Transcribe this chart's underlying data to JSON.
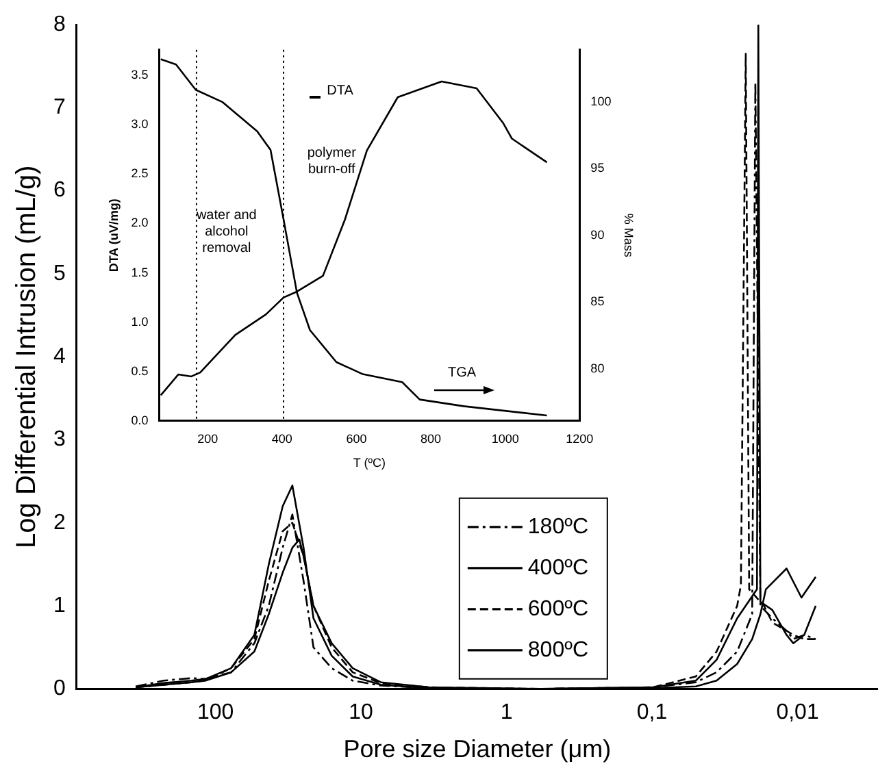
{
  "chart_data": [
    {
      "type": "line",
      "xlabel": "Pore size Diameter (μm)",
      "ylabel": "Log Differential Intrusion (mL/g)",
      "log": "x",
      "xlim": [
        900,
        0.0028
      ],
      "xticks": [
        100,
        10,
        1,
        {
          "value": 0.1,
          "label": "0,1"
        },
        {
          "value": 0.01,
          "label": "0,01"
        }
      ],
      "ylim": [
        0,
        8
      ],
      "yticks": [
        0,
        1,
        2,
        3,
        4,
        5,
        6,
        7,
        8
      ],
      "legend": "bottom",
      "marker": "none",
      "series": [
        {
          "name": "180ºC",
          "color": "#000000",
          "line_style": "dashdot",
          "x": [
            353,
            227,
            146,
            117,
            78,
            54,
            43,
            34.5,
            29.6,
            24.8,
            21.2,
            15.9,
            11.4,
            7.3,
            3.4,
            0.58,
            0.098,
            0.05,
            0.036,
            0.026,
            0.0205,
            0.0195,
            0.018,
            0.0149,
            0.0119,
            0.0107,
            0.009,
            0.0075
          ],
          "values": [
            0.03,
            0.1,
            0.13,
            0.12,
            0.2,
            0.55,
            1.0,
            1.7,
            2.1,
            1.3,
            0.5,
            0.25,
            0.1,
            0.04,
            0.01,
            0,
            0.02,
            0.08,
            0.2,
            0.45,
            0.9,
            7.3,
            1.0,
            0.85,
            0.7,
            0.6,
            0.65,
            0.6
          ]
        },
        {
          "name": "400ºC",
          "color": "#000000",
          "line_style": "solid",
          "x": [
            353,
            227,
            146,
            117,
            78,
            54,
            43,
            34.5,
            29.6,
            24.8,
            21.2,
            15.9,
            11.4,
            7.3,
            3.4,
            0.58,
            0.098,
            0.05,
            0.036,
            0.026,
            0.019,
            0.0186,
            0.018,
            0.0149,
            0.0119,
            0.0107,
            0.009,
            0.0075
          ],
          "values": [
            0.02,
            0.07,
            0.1,
            0.12,
            0.25,
            0.65,
            1.5,
            2.2,
            2.45,
            1.7,
            0.85,
            0.4,
            0.15,
            0.05,
            0.01,
            0,
            0.02,
            0.1,
            0.35,
            0.85,
            1.2,
            8,
            1.05,
            0.95,
            0.65,
            0.55,
            0.65,
            1.0
          ]
        },
        {
          "name": "600ºC",
          "color": "#000000",
          "line_style": "dashed",
          "x": [
            353,
            227,
            146,
            117,
            78,
            54,
            43,
            34.5,
            29.6,
            24.8,
            21.2,
            15.9,
            11.4,
            7.3,
            3.4,
            0.58,
            0.098,
            0.05,
            0.036,
            0.026,
            0.0245,
            0.0227,
            0.0215,
            0.017,
            0.0149,
            0.0119,
            0.0107,
            0.009,
            0.0075
          ],
          "values": [
            0.02,
            0.05,
            0.08,
            0.1,
            0.25,
            0.6,
            1.3,
            1.9,
            2.0,
            1.6,
            1.0,
            0.5,
            0.2,
            0.07,
            0.02,
            0,
            0.02,
            0.15,
            0.45,
            1.0,
            1.25,
            7.65,
            1.2,
            1.0,
            0.8,
            0.7,
            0.65,
            0.6,
            0.6
          ]
        },
        {
          "name": "800ºC",
          "color": "#000000",
          "line_style": "solid",
          "x": [
            353,
            227,
            146,
            117,
            78,
            54,
            43,
            34.5,
            29.6,
            26.5,
            24.8,
            21.2,
            15.9,
            11.4,
            7.3,
            3.4,
            0.58,
            0.098,
            0.05,
            0.036,
            0.026,
            0.0205,
            0.018,
            0.0165,
            0.0119,
            0.0094,
            0.0075
          ],
          "values": [
            0.02,
            0.05,
            0.08,
            0.1,
            0.2,
            0.45,
            0.9,
            1.4,
            1.7,
            1.8,
            1.6,
            1.0,
            0.55,
            0.25,
            0.08,
            0.02,
            0,
            0.01,
            0.03,
            0.1,
            0.3,
            0.6,
            0.9,
            1.2,
            1.45,
            1.1,
            1.35
          ]
        }
      ]
    },
    {
      "type": "line",
      "xlabel": "T (ºC)",
      "ylabel": "DTA (uV/mg)",
      "y2label": "% Mass",
      "xlim": [
        70,
        1200
      ],
      "xticks": [
        200,
        400,
        600,
        800,
        1000,
        1200
      ],
      "ylim": [
        0,
        3.76
      ],
      "yticks": [
        {
          "value": 0,
          "label": "0.0"
        },
        {
          "value": 0.5,
          "label": "0.5"
        },
        {
          "value": 1,
          "label": "1.0"
        },
        {
          "value": 1.5,
          "label": "1.5"
        },
        {
          "value": 2,
          "label": "2.0"
        },
        {
          "value": 2.5,
          "label": "2.5"
        },
        {
          "value": 3,
          "label": "3.0"
        },
        {
          "value": 3.5,
          "label": "3.5"
        }
      ],
      "y2lim": [
        76.1,
        103.9
      ],
      "y2ticks": [
        80,
        85,
        90,
        95,
        100
      ],
      "legend": false,
      "marker": "none",
      "series": [
        {
          "color": "#000000",
          "line_style": "solid",
          "x": [
            74,
            121,
            156,
            180,
            274,
            357,
            404,
            440,
            510,
            569,
            628,
            711,
            829,
            923,
            994,
            1018,
            1112
          ],
          "values": [
            0.26,
            0.47,
            0.45,
            0.49,
            0.87,
            1.08,
            1.25,
            1.31,
            1.47,
            2.04,
            2.74,
            3.28,
            3.44,
            3.37,
            3.02,
            2.86,
            2.62
          ]
        },
        {
          "color": "#000000",
          "line_style": "solid",
          "axis": "y2",
          "x": [
            74,
            115,
            168,
            239,
            333,
            369,
            404,
            440,
            475,
            546,
            617,
            723,
            770,
            888,
            1112
          ],
          "values": [
            103.2,
            102.8,
            100.9,
            100.0,
            97.8,
            96.4,
            91.2,
            85.7,
            82.9,
            80.5,
            79.6,
            79.0,
            77.7,
            77.2,
            76.5
          ]
        }
      ],
      "ref_lines": [
        {
          "axis": "x",
          "value": 170,
          "line_style": "dotted"
        },
        {
          "axis": "x",
          "value": 404,
          "line_style": "dotted"
        }
      ],
      "annotations": [
        "DTA",
        "TGA",
        "water and alcohol removal",
        "polymer burn-off"
      ]
    }
  ]
}
